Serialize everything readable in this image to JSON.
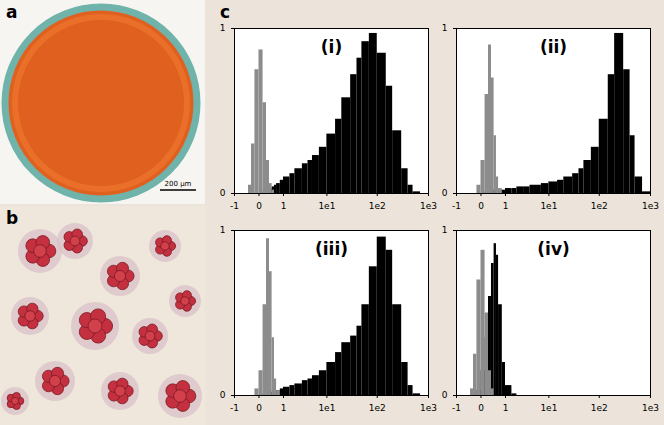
{
  "figure": {
    "panel_labels": [
      "a",
      "b",
      "c"
    ],
    "scale_bar": "200 µm"
  },
  "chart_data": [
    {
      "type": "histogram",
      "title": "(i)",
      "log": "x",
      "bins": [
        -1,
        -0.6,
        -0.4,
        -0.3,
        -0.2,
        -0.1,
        0,
        0.1,
        0.2,
        0.3,
        0.4,
        0.5,
        0.6,
        0.8,
        1,
        1.5,
        2,
        3,
        4,
        5,
        7,
        10,
        15,
        20,
        30,
        40,
        50,
        70,
        100,
        150,
        200,
        300,
        400,
        500,
        700,
        1000
      ],
      "series": [
        {
          "color": "#000000",
          "values": [
            0,
            0,
            0,
            0,
            0,
            0,
            0,
            0.01,
            0.02,
            0.03,
            0.04,
            0.05,
            0.06,
            0.08,
            0.1,
            0.12,
            0.15,
            0.18,
            0.2,
            0.23,
            0.28,
            0.36,
            0.45,
            0.58,
            0.72,
            0.82,
            0.92,
            0.97,
            0.85,
            0.65,
            0.38,
            0.15,
            0.05,
            0.01,
            0
          ]
        },
        {
          "color": "#8c8c8c",
          "values": [
            0,
            0,
            0,
            0.05,
            0.3,
            0.75,
            0.87,
            0.55,
            0.2,
            0.06,
            0.02,
            0,
            0,
            0,
            0,
            0,
            0,
            0,
            0,
            0,
            0,
            0,
            0,
            0,
            0,
            0,
            0,
            0,
            0,
            0,
            0,
            0,
            0,
            0,
            0
          ]
        }
      ],
      "xlim": [
        -1,
        1000
      ],
      "xticks": [
        -1,
        0,
        1,
        {
          "value": 10,
          "label": "1e1"
        },
        {
          "value": 100,
          "label": "1e2"
        },
        {
          "value": 1000,
          "label": "1e3"
        }
      ],
      "ylim": [
        0,
        1
      ],
      "yticks": [
        0,
        1
      ]
    },
    {
      "type": "histogram",
      "title": "(ii)",
      "log": "x",
      "bins": [
        -1,
        -0.6,
        -0.4,
        -0.3,
        -0.2,
        -0.1,
        0,
        0.1,
        0.2,
        0.3,
        0.4,
        0.5,
        0.6,
        0.8,
        1,
        1.5,
        2,
        3,
        4,
        5,
        7,
        10,
        15,
        20,
        30,
        40,
        50,
        70,
        100,
        150,
        200,
        300,
        400,
        500,
        700,
        1000
      ],
      "series": [
        {
          "color": "#000000",
          "values": [
            0,
            0,
            0,
            0,
            0,
            0,
            0,
            0.01,
            0.02,
            0.02,
            0.02,
            0.02,
            0.02,
            0.02,
            0.03,
            0.03,
            0.04,
            0.04,
            0.05,
            0.05,
            0.06,
            0.07,
            0.08,
            0.1,
            0.12,
            0.15,
            0.2,
            0.28,
            0.45,
            0.72,
            0.97,
            0.75,
            0.35,
            0.1,
            0.01
          ]
        },
        {
          "color": "#8c8c8c",
          "values": [
            0,
            0,
            0,
            0,
            0,
            0.05,
            0.2,
            0.6,
            0.9,
            0.7,
            0.35,
            0.1,
            0.03,
            0,
            0,
            0,
            0,
            0,
            0,
            0,
            0,
            0,
            0,
            0,
            0,
            0,
            0,
            0,
            0,
            0,
            0,
            0,
            0,
            0,
            0
          ]
        }
      ],
      "xlim": [
        -1,
        1000
      ],
      "xticks": [
        -1,
        0,
        1,
        {
          "value": 10,
          "label": "1e1"
        },
        {
          "value": 100,
          "label": "1e2"
        },
        {
          "value": 1000,
          "label": "1e3"
        }
      ],
      "ylim": [
        0,
        1
      ],
      "yticks": [
        0,
        1
      ]
    },
    {
      "type": "histogram",
      "title": "(iii)",
      "log": "x",
      "bins": [
        -1,
        -0.6,
        -0.4,
        -0.3,
        -0.2,
        -0.1,
        0,
        0.1,
        0.2,
        0.3,
        0.4,
        0.5,
        0.6,
        0.8,
        1,
        1.5,
        2,
        3,
        4,
        5,
        7,
        10,
        15,
        20,
        30,
        40,
        50,
        70,
        100,
        150,
        200,
        300,
        400,
        500,
        700,
        1000
      ],
      "series": [
        {
          "color": "#000000",
          "values": [
            0,
            0,
            0,
            0,
            0,
            0,
            0,
            0.01,
            0.02,
            0.02,
            0.02,
            0.03,
            0.03,
            0.04,
            0.05,
            0.06,
            0.07,
            0.09,
            0.1,
            0.12,
            0.15,
            0.2,
            0.26,
            0.32,
            0.36,
            0.42,
            0.55,
            0.78,
            0.96,
            0.88,
            0.55,
            0.2,
            0.06,
            0.01,
            0
          ]
        },
        {
          "color": "#8c8c8c",
          "values": [
            0,
            0,
            0,
            0,
            0,
            0.04,
            0.15,
            0.55,
            0.95,
            0.75,
            0.35,
            0.1,
            0.03,
            0,
            0,
            0,
            0,
            0,
            0,
            0,
            0,
            0,
            0,
            0,
            0,
            0,
            0,
            0,
            0,
            0,
            0,
            0,
            0,
            0,
            0
          ]
        }
      ],
      "xlim": [
        -1,
        1000
      ],
      "xticks": [
        -1,
        0,
        1,
        {
          "value": 10,
          "label": "1e1"
        },
        {
          "value": 100,
          "label": "1e2"
        },
        {
          "value": 1000,
          "label": "1e3"
        }
      ],
      "ylim": [
        0,
        1
      ],
      "yticks": [
        0,
        1
      ]
    },
    {
      "type": "histogram",
      "title": "(iv)",
      "log": "x",
      "bins": [
        -1,
        -0.6,
        -0.4,
        -0.3,
        -0.2,
        -0.1,
        0,
        0.1,
        0.2,
        0.3,
        0.4,
        0.5,
        0.6,
        0.8,
        1,
        1.5,
        2,
        3,
        4,
        5,
        7,
        10,
        15,
        20,
        30,
        40,
        50,
        70,
        100,
        150,
        200,
        300,
        400,
        500,
        700,
        1000
      ],
      "series": [
        {
          "color": "#000000",
          "values": [
            0,
            0,
            0,
            0,
            0,
            0.03,
            0.15,
            0.35,
            0.6,
            0.8,
            0.92,
            0.85,
            0.55,
            0.2,
            0.06,
            0.01,
            0,
            0,
            0,
            0,
            0,
            0,
            0,
            0,
            0,
            0,
            0,
            0,
            0,
            0,
            0,
            0,
            0,
            0,
            0
          ]
        },
        {
          "color": "#8c8c8c",
          "values": [
            0,
            0,
            0,
            0.04,
            0.25,
            0.7,
            0.88,
            0.5,
            0.15,
            0.04,
            0,
            0,
            0,
            0,
            0,
            0,
            0,
            0,
            0,
            0,
            0,
            0,
            0,
            0,
            0,
            0,
            0,
            0,
            0,
            0,
            0,
            0,
            0,
            0,
            0
          ]
        }
      ],
      "xlim": [
        -1,
        1000
      ],
      "xticks": [
        -1,
        0,
        1,
        {
          "value": 10,
          "label": "1e1"
        },
        {
          "value": 100,
          "label": "1e2"
        },
        {
          "value": 1000,
          "label": "1e3"
        }
      ],
      "ylim": [
        0,
        1
      ],
      "yticks": [
        0,
        1
      ]
    }
  ]
}
